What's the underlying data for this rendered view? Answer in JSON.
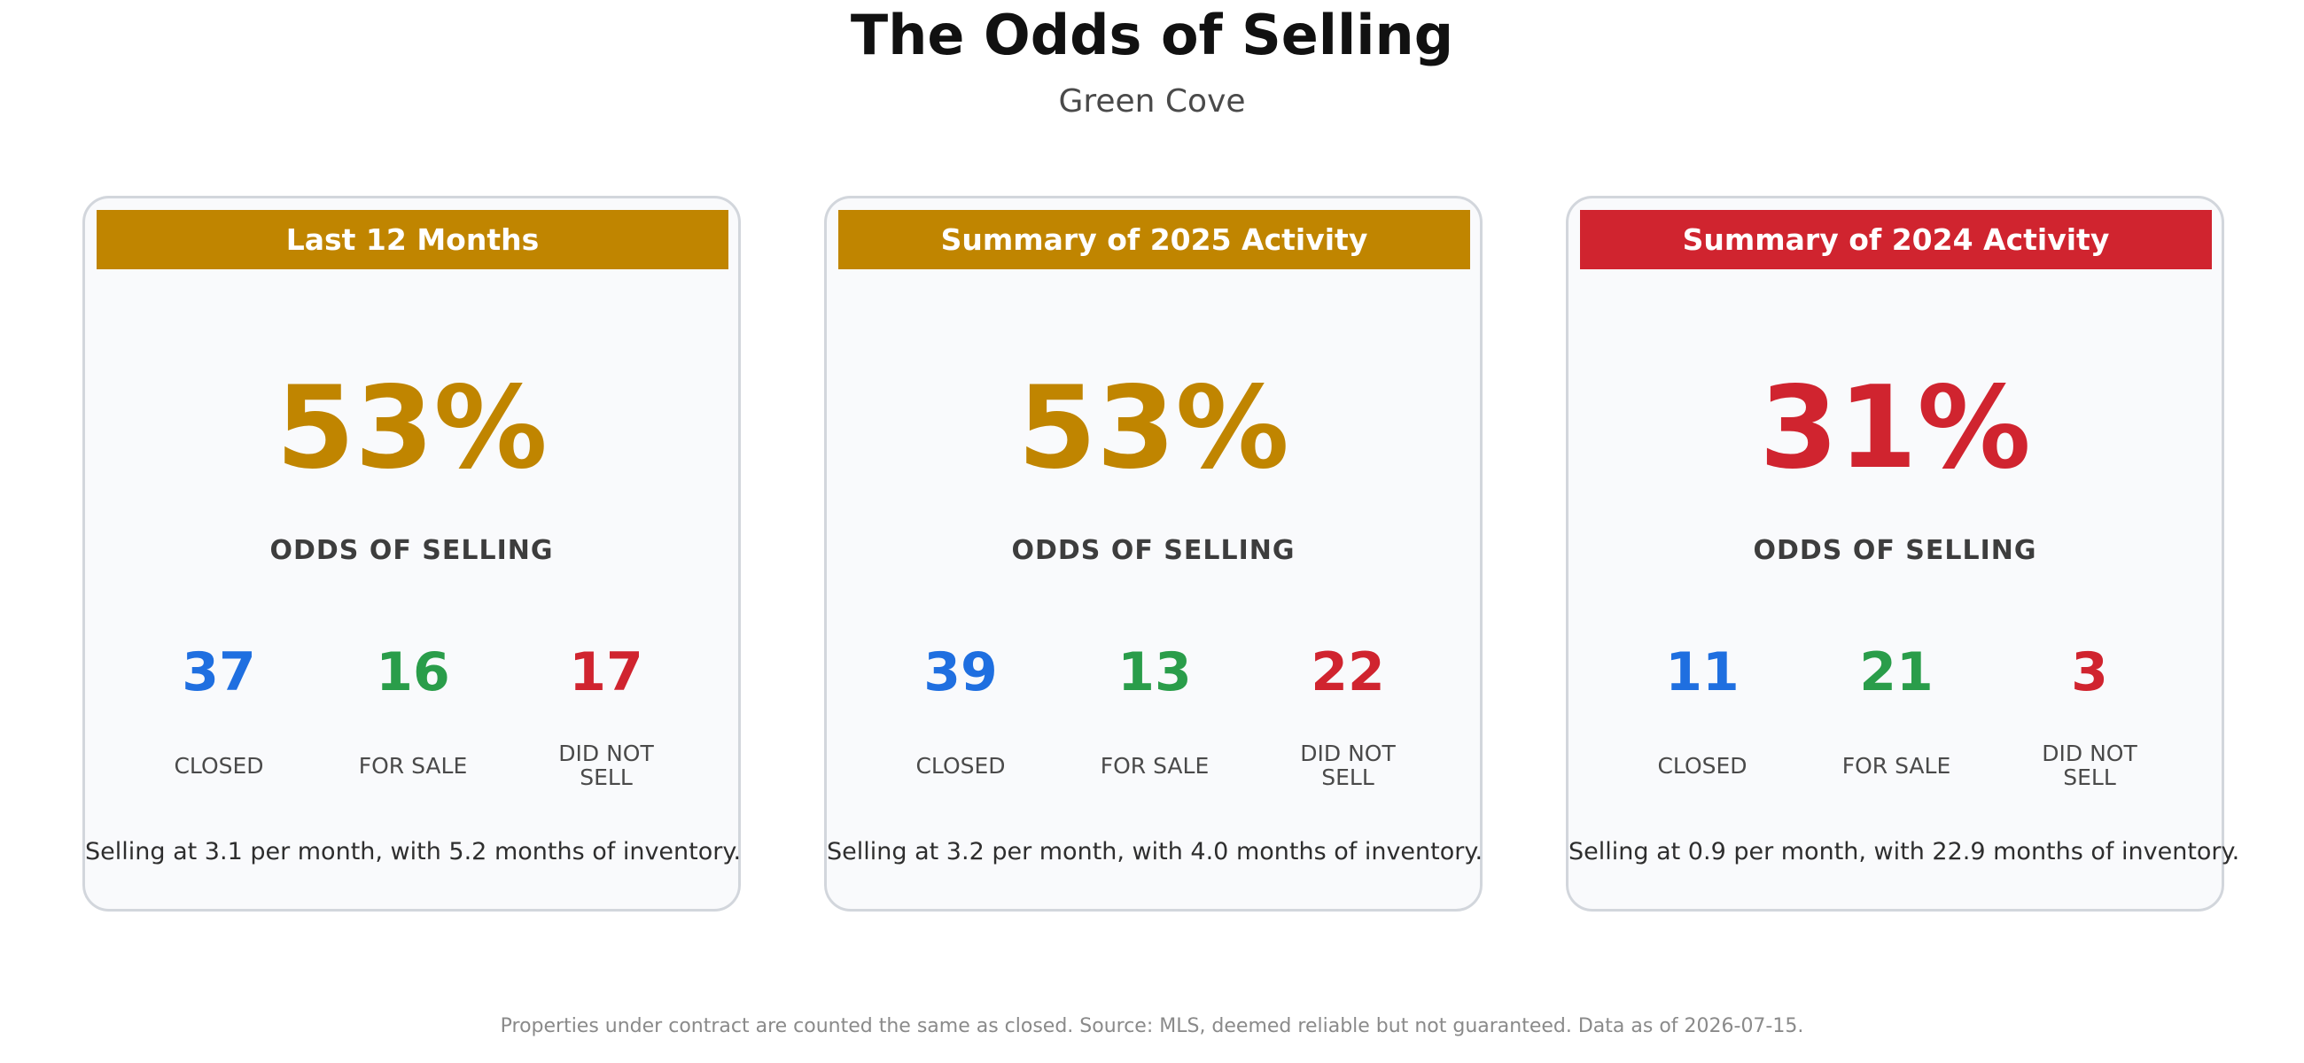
{
  "header": {
    "title": "The Odds of Selling",
    "subtitle": "Green Cove"
  },
  "colors": {
    "gold": "#c08500",
    "red": "#d0242f",
    "blue": "#1f6fe0",
    "green": "#2a9d4a"
  },
  "cards": [
    {
      "heading": "Last 12 Months",
      "header_color": "#c08500",
      "percent": "53%",
      "percent_color": "#c08500",
      "odds_label": "ODDS OF SELLING",
      "closed": "37",
      "for_sale": "16",
      "did_not_sell": "17",
      "closed_label": "CLOSED",
      "for_sale_label": "FOR SALE",
      "did_not_sell_label": "DID NOT SELL",
      "summary": "Selling at 3.1 per month, with 5.2 months of inventory."
    },
    {
      "heading": "Summary of 2025 Activity",
      "header_color": "#c08500",
      "percent": "53%",
      "percent_color": "#c08500",
      "odds_label": "ODDS OF SELLING",
      "closed": "39",
      "for_sale": "13",
      "did_not_sell": "22",
      "closed_label": "CLOSED",
      "for_sale_label": "FOR SALE",
      "did_not_sell_label": "DID NOT SELL",
      "summary": "Selling at 3.2 per month, with 4.0 months of inventory."
    },
    {
      "heading": "Summary of 2024 Activity",
      "header_color": "#d0242f",
      "percent": "31%",
      "percent_color": "#d0242f",
      "odds_label": "ODDS OF SELLING",
      "closed": "11",
      "for_sale": "21",
      "did_not_sell": "3",
      "closed_label": "CLOSED",
      "for_sale_label": "FOR SALE",
      "did_not_sell_label": "DID NOT SELL",
      "summary": "Selling at 0.9 per month, with 22.9 months of inventory."
    }
  ],
  "footnote": "Properties under contract are counted the same as closed. Source: MLS, deemed reliable but not guaranteed. Data as of 2026-07-15."
}
